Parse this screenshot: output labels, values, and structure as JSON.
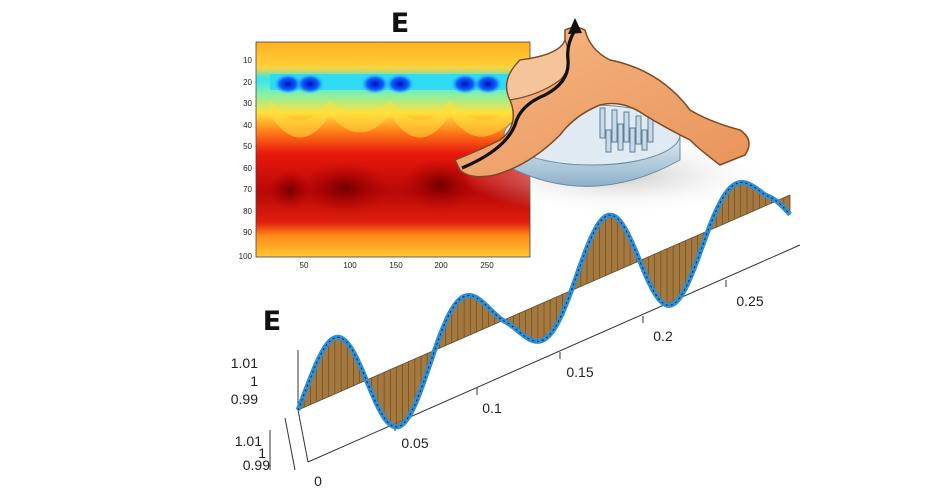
{
  "heatmap": {
    "title": "E",
    "y_ticks": [
      "10",
      "20",
      "30",
      "40",
      "50",
      "60",
      "70",
      "80",
      "90",
      "100"
    ],
    "x_ticks": [
      "50",
      "100",
      "150",
      "200",
      "250"
    ]
  },
  "wave_plot": {
    "title": "E",
    "axis_x_ticks": [
      "0.05",
      "0.1",
      "0.15",
      "0.2",
      "0.25"
    ],
    "axis_y_upper_ticks": [
      "1.01",
      "1",
      "0.99"
    ],
    "axis_y_lower_ticks": [
      "1.01",
      "1",
      "0.99"
    ],
    "origin_label": "0"
  },
  "colors": {
    "device_body": "#f0a56a",
    "device_outline": "#7a4a25",
    "pillar_tray": "#b8cfe0",
    "wave_fill": "#9a6a2a",
    "wave_edge": "#2e8fd6"
  }
}
